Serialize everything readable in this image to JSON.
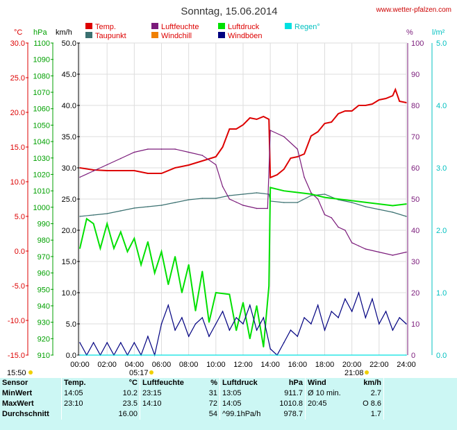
{
  "header": {
    "title": "Sonntag, 15.06.2014",
    "site": "www.wetter-pfalzen.com"
  },
  "legend": [
    {
      "label": "Temp.",
      "color": "#dd0000"
    },
    {
      "label": "Taupunkt",
      "color": "#3a7070"
    },
    {
      "label": "Luftfeuchte",
      "color": "#7a1a7a"
    },
    {
      "label": "Windchill",
      "color": "#f08000"
    },
    {
      "label": "Luftdruck",
      "color": "#00e000"
    },
    {
      "label": "Windböen",
      "color": "#000080"
    },
    {
      "label": "Regen°",
      "color": "#00e0e0"
    }
  ],
  "units": {
    "temp": "°C",
    "pressure": "hPa",
    "wind": "km/h",
    "humidity": "%",
    "rain": "l/m²"
  },
  "sun": {
    "sunrise": "05:17",
    "sunset": "21:08",
    "left_marker": "15:50"
  },
  "chart_data": {
    "type": "line",
    "x_unit": "hour",
    "xlim": [
      0,
      24
    ],
    "x_ticks": [
      "00:00",
      "02:00",
      "04:00",
      "06:00",
      "08:00",
      "10:00",
      "12:00",
      "14:00",
      "16:00",
      "18:00",
      "20:00",
      "22:00",
      "24:00"
    ],
    "axes": {
      "temp": {
        "unit": "°C",
        "range": [
          -15,
          30
        ],
        "ticks": [
          "30.0",
          "25.0",
          "20.0",
          "15.0",
          "10.0",
          "5.0",
          "0.0",
          "-5.0",
          "-10.0",
          "-15.0"
        ],
        "color": "#dd0000"
      },
      "pressure": {
        "unit": "hPa",
        "range": [
          910,
          1100
        ],
        "ticks": [
          "1100",
          "1090",
          "1080",
          "1070",
          "1060",
          "1050",
          "1040",
          "1030",
          "1020",
          "1010",
          "1000",
          "990",
          "980",
          "970",
          "960",
          "950",
          "940",
          "930",
          "920",
          "910"
        ],
        "color": "#00b000"
      },
      "wind": {
        "unit": "km/h",
        "range": [
          0,
          50
        ],
        "ticks": [
          "50.0",
          "45.0",
          "40.0",
          "35.0",
          "30.0",
          "25.0",
          "20.0",
          "15.0",
          "10.0",
          "5.0",
          "0.0"
        ],
        "color": "#000000"
      },
      "humidity": {
        "unit": "%",
        "range": [
          0,
          100
        ],
        "ticks": [
          "100",
          "90",
          "80",
          "70",
          "60",
          "50",
          "40",
          "30",
          "20",
          "10",
          "0"
        ],
        "color": "#7a1a7a"
      },
      "rain": {
        "unit": "l/m²",
        "range": [
          0,
          5
        ],
        "ticks": [
          "5.0",
          "4.0",
          "3.0",
          "2.0",
          "1.0",
          "0.0"
        ],
        "color": "#00d0d0"
      }
    },
    "series": [
      {
        "name": "Temp.",
        "axis": "temp",
        "color": "#dd0000",
        "points": [
          [
            0,
            12.0
          ],
          [
            1,
            11.7
          ],
          [
            2,
            11.6
          ],
          [
            3,
            11.6
          ],
          [
            4,
            11.6
          ],
          [
            5,
            11.2
          ],
          [
            6,
            11.2
          ],
          [
            7,
            12.0
          ],
          [
            8,
            12.4
          ],
          [
            9,
            13.0
          ],
          [
            10,
            13.6
          ],
          [
            10.5,
            15.0
          ],
          [
            11,
            17.6
          ],
          [
            11.5,
            17.6
          ],
          [
            12,
            18.2
          ],
          [
            12.5,
            19.2
          ],
          [
            13,
            19.0
          ],
          [
            13.5,
            19.4
          ],
          [
            13.9,
            19.0
          ],
          [
            14,
            10.6
          ],
          [
            14.5,
            11.0
          ],
          [
            15,
            11.8
          ],
          [
            15.5,
            13.4
          ],
          [
            16,
            13.6
          ],
          [
            16.5,
            14.0
          ],
          [
            17,
            16.6
          ],
          [
            17.5,
            17.2
          ],
          [
            18,
            18.4
          ],
          [
            18.5,
            18.6
          ],
          [
            19,
            19.8
          ],
          [
            19.5,
            20.2
          ],
          [
            20,
            20.2
          ],
          [
            20.5,
            21.0
          ],
          [
            21,
            21.0
          ],
          [
            21.5,
            21.2
          ],
          [
            22,
            21.8
          ],
          [
            22.5,
            22.0
          ],
          [
            23,
            22.4
          ],
          [
            23.2,
            23.3
          ],
          [
            23.5,
            21.6
          ],
          [
            24,
            21.4
          ]
        ]
      },
      {
        "name": "Taupunkt",
        "axis": "temp",
        "color": "#3a7070",
        "points": [
          [
            0,
            5.0
          ],
          [
            1,
            5.2
          ],
          [
            2,
            5.4
          ],
          [
            3,
            5.8
          ],
          [
            4,
            6.2
          ],
          [
            5,
            6.4
          ],
          [
            6,
            6.6
          ],
          [
            7,
            7.0
          ],
          [
            8,
            7.4
          ],
          [
            9,
            7.6
          ],
          [
            10,
            7.6
          ],
          [
            11,
            8.0
          ],
          [
            12,
            8.2
          ],
          [
            13,
            8.4
          ],
          [
            13.9,
            8.2
          ],
          [
            14,
            7.2
          ],
          [
            15,
            7.0
          ],
          [
            16,
            7.0
          ],
          [
            17,
            8.0
          ],
          [
            18,
            8.2
          ],
          [
            19,
            7.4
          ],
          [
            20,
            7.0
          ],
          [
            21,
            6.4
          ],
          [
            22,
            6.0
          ],
          [
            23,
            5.6
          ],
          [
            24,
            5.0
          ]
        ]
      },
      {
        "name": "Luftfeuchte",
        "axis": "humidity",
        "color": "#7a1a7a",
        "points": [
          [
            0,
            57
          ],
          [
            1,
            59
          ],
          [
            2,
            61
          ],
          [
            3,
            63
          ],
          [
            4,
            65
          ],
          [
            5,
            66
          ],
          [
            6,
            66
          ],
          [
            7,
            66
          ],
          [
            8,
            65
          ],
          [
            9,
            64
          ],
          [
            10,
            61
          ],
          [
            10.5,
            54
          ],
          [
            11,
            50
          ],
          [
            11.5,
            49
          ],
          [
            12,
            48
          ],
          [
            13,
            47
          ],
          [
            13.8,
            47
          ],
          [
            14,
            72
          ],
          [
            15,
            70
          ],
          [
            16,
            66
          ],
          [
            16.5,
            57
          ],
          [
            17,
            52
          ],
          [
            17.5,
            50
          ],
          [
            18,
            45
          ],
          [
            18.5,
            44
          ],
          [
            19,
            41
          ],
          [
            19.5,
            40
          ],
          [
            20,
            36
          ],
          [
            20.5,
            35
          ],
          [
            21,
            34
          ],
          [
            22,
            33
          ],
          [
            23,
            32
          ],
          [
            24,
            33
          ]
        ]
      },
      {
        "name": "Luftdruck",
        "axis": "pressure",
        "color": "#00e000",
        "points": [
          [
            0,
            975
          ],
          [
            0.5,
            993
          ],
          [
            1,
            990
          ],
          [
            1.5,
            975
          ],
          [
            2,
            990
          ],
          [
            2.5,
            975
          ],
          [
            3,
            985
          ],
          [
            3.5,
            973
          ],
          [
            4,
            981
          ],
          [
            4.5,
            965
          ],
          [
            5,
            979
          ],
          [
            5.5,
            960
          ],
          [
            6,
            973
          ],
          [
            6.5,
            953
          ],
          [
            7,
            970
          ],
          [
            7.5,
            948
          ],
          [
            8,
            965
          ],
          [
            8.5,
            937
          ],
          [
            9,
            961
          ],
          [
            9.5,
            930
          ],
          [
            10,
            948
          ],
          [
            11,
            947
          ],
          [
            11.5,
            925
          ],
          [
            12,
            942
          ],
          [
            12.5,
            920
          ],
          [
            13,
            940
          ],
          [
            13.5,
            915
          ],
          [
            13.9,
            952
          ],
          [
            14,
            1012
          ],
          [
            15,
            1010
          ],
          [
            16,
            1009
          ],
          [
            17,
            1008
          ],
          [
            18,
            1006
          ],
          [
            19,
            1005
          ],
          [
            20,
            1004
          ],
          [
            21,
            1003
          ],
          [
            22,
            1002
          ],
          [
            23,
            1001
          ],
          [
            24,
            1002
          ]
        ]
      },
      {
        "name": "Windböen",
        "axis": "wind",
        "color": "#000080",
        "points": [
          [
            0,
            2
          ],
          [
            0.5,
            0
          ],
          [
            1,
            2
          ],
          [
            1.5,
            0
          ],
          [
            2,
            2
          ],
          [
            2.5,
            0
          ],
          [
            3,
            2
          ],
          [
            3.5,
            0
          ],
          [
            4,
            2
          ],
          [
            4.5,
            0
          ],
          [
            5,
            3
          ],
          [
            5.5,
            0
          ],
          [
            6,
            5
          ],
          [
            6.5,
            8
          ],
          [
            7,
            4
          ],
          [
            7.5,
            6
          ],
          [
            8,
            3
          ],
          [
            8.5,
            5
          ],
          [
            9,
            6
          ],
          [
            9.5,
            3
          ],
          [
            10,
            5
          ],
          [
            10.5,
            7
          ],
          [
            11,
            4
          ],
          [
            11.5,
            6
          ],
          [
            12,
            5
          ],
          [
            12.5,
            8
          ],
          [
            13,
            4
          ],
          [
            13.5,
            6
          ],
          [
            14,
            1
          ],
          [
            14.5,
            0
          ],
          [
            15,
            2
          ],
          [
            15.5,
            4
          ],
          [
            16,
            3
          ],
          [
            16.5,
            6
          ],
          [
            17,
            5
          ],
          [
            17.5,
            8
          ],
          [
            18,
            4
          ],
          [
            18.5,
            7
          ],
          [
            19,
            6
          ],
          [
            19.5,
            9
          ],
          [
            20,
            7
          ],
          [
            20.5,
            10
          ],
          [
            21,
            6
          ],
          [
            21.5,
            9
          ],
          [
            22,
            5
          ],
          [
            22.5,
            7
          ],
          [
            23,
            4
          ],
          [
            23.5,
            6
          ],
          [
            24,
            5
          ]
        ]
      },
      {
        "name": "Regen°",
        "axis": "rain",
        "color": "#00e0e0",
        "points": [
          [
            0,
            0
          ],
          [
            24,
            0
          ]
        ]
      }
    ]
  },
  "stats": {
    "headers": [
      "Sensor",
      "Temp.",
      "°C",
      "Luftfeuchte",
      "%",
      "Luftdruck",
      "hPa",
      "Wind",
      "km/h"
    ],
    "rows": [
      {
        "label": "MinWert",
        "temp_time": "14:05",
        "temp": "10.2",
        "hum_time": "23:15",
        "hum": "31",
        "pres_time": "13:05",
        "pres": "911.7",
        "wind_time": "Ø 10 min.",
        "wind": "2.7"
      },
      {
        "label": "MaxWert",
        "temp_time": "23:10",
        "temp": "23.5",
        "hum_time": "14:10",
        "hum": "72",
        "pres_time": "14:05",
        "pres": "1010.8",
        "wind_time": "20:45",
        "wind": "O 8.6"
      },
      {
        "label": "Durchschnitt",
        "temp_time": "",
        "temp": "16.00",
        "hum_time": "",
        "hum": "54",
        "pres_time": "^99.1hPa/h",
        "pres": "978.7",
        "wind_time": "",
        "wind": "1.7"
      }
    ]
  }
}
